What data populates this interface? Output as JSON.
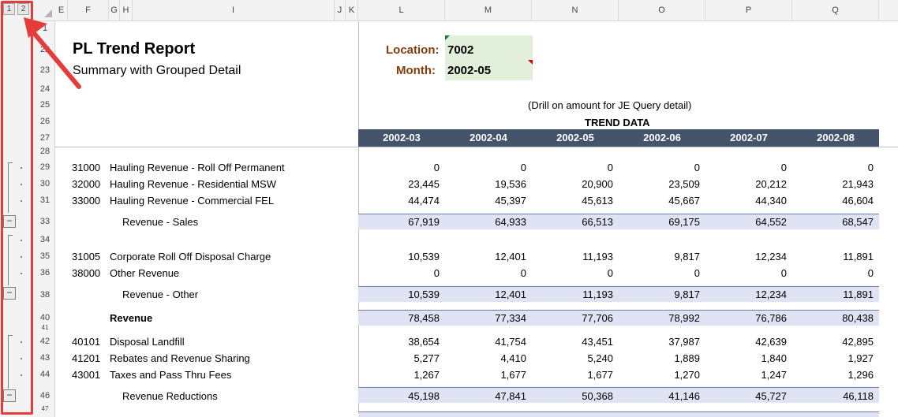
{
  "outline": {
    "level_buttons": [
      "1",
      "2"
    ],
    "collapse_symbol": "−"
  },
  "column_headers": [
    "E",
    "F",
    "G",
    "H",
    "I",
    "J",
    "K",
    "L",
    "M",
    "N",
    "O",
    "P",
    "Q"
  ],
  "row_numbers": [
    "1",
    "22",
    "23",
    "24",
    "25",
    "26",
    "27",
    "28",
    "29",
    "30",
    "31",
    "33",
    "34",
    "35",
    "36",
    "38",
    "40",
    "41",
    "42",
    "43",
    "44",
    "46",
    "47"
  ],
  "report": {
    "title": "PL Trend Report",
    "subtitle": "Summary with Grouped Detail",
    "location_label": "Location:",
    "location_value": "7002",
    "month_label": "Month:",
    "month_value": "2002-05",
    "drill_note": "(Drill on amount for JE Query detail)",
    "trend_label": "TREND DATA"
  },
  "periods": [
    "2002-03",
    "2002-04",
    "2002-05",
    "2002-06",
    "2002-07",
    "2002-08"
  ],
  "rows": [
    {
      "code": "31000",
      "desc": "Hauling Revenue - Roll Off Permanent",
      "values": [
        "0",
        "0",
        "0",
        "0",
        "0",
        "0"
      ]
    },
    {
      "code": "32000",
      "desc": "Hauling Revenue - Residential MSW",
      "values": [
        "23,445",
        "19,536",
        "20,900",
        "23,509",
        "20,212",
        "21,943"
      ]
    },
    {
      "code": "33000",
      "desc": "Hauling Revenue - Commercial FEL",
      "values": [
        "44,474",
        "45,397",
        "45,613",
        "45,667",
        "44,340",
        "46,604"
      ]
    },
    {
      "code": "",
      "desc": "Revenue - Sales",
      "values": [
        "67,919",
        "64,933",
        "66,513",
        "69,175",
        "64,552",
        "68,547"
      ]
    },
    {
      "code": "31005",
      "desc": "Corporate Roll Off Disposal Charge",
      "values": [
        "10,539",
        "12,401",
        "11,193",
        "9,817",
        "12,234",
        "11,891"
      ]
    },
    {
      "code": "38000",
      "desc": "Other Revenue",
      "values": [
        "0",
        "0",
        "0",
        "0",
        "0",
        "0"
      ]
    },
    {
      "code": "",
      "desc": "Revenue - Other",
      "values": [
        "10,539",
        "12,401",
        "11,193",
        "9,817",
        "12,234",
        "11,891"
      ]
    },
    {
      "code": "",
      "desc": "Revenue",
      "values": [
        "78,458",
        "77,334",
        "77,706",
        "78,992",
        "76,786",
        "80,438"
      ]
    },
    {
      "code": "40101",
      "desc": "Disposal Landfill",
      "values": [
        "38,654",
        "41,754",
        "43,451",
        "37,987",
        "42,639",
        "42,895"
      ]
    },
    {
      "code": "41201",
      "desc": "Rebates and Revenue Sharing",
      "values": [
        "5,277",
        "4,410",
        "5,240",
        "1,889",
        "1,840",
        "1,927"
      ]
    },
    {
      "code": "43001",
      "desc": "Taxes and Pass Thru Fees",
      "values": [
        "1,267",
        "1,677",
        "1,677",
        "1,270",
        "1,247",
        "1,296"
      ]
    },
    {
      "code": "",
      "desc": "Revenue Reductions",
      "values": [
        "45,198",
        "47,841",
        "50,368",
        "41,146",
        "45,727",
        "46,118"
      ]
    }
  ],
  "colors": {
    "header_band": "#44546a",
    "subtotal_band": "#dfe3f3",
    "input_fill": "#e2efda",
    "label_brown": "#843c0c",
    "annotation": "#e63b3b"
  }
}
